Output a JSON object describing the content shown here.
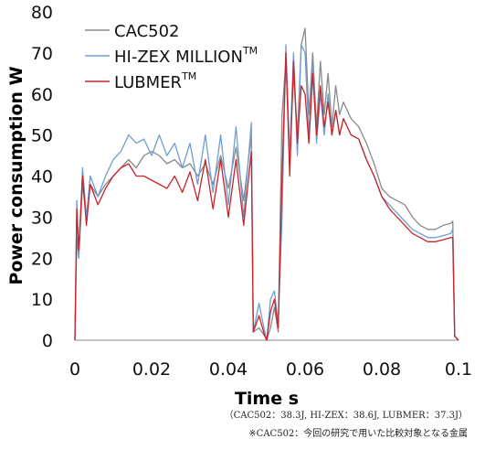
{
  "chart_data": {
    "type": "line",
    "xlabel": "Time s",
    "ylabel": "Power consumption W",
    "xlim": [
      0,
      0.1
    ],
    "ylim": [
      0,
      80
    ],
    "x_ticks": [
      "0",
      "0.02",
      "0.04",
      "0.06",
      "0.08",
      "0.1"
    ],
    "y_ticks": [
      "0",
      "10",
      "20",
      "30",
      "40",
      "50",
      "60",
      "70",
      "80"
    ],
    "grid": false,
    "legend_position": "top-left",
    "series": [
      {
        "name": "CAC502",
        "superscript": "",
        "color": "#8a8a8a",
        "points": [
          [
            0,
            0
          ],
          [
            0.0005,
            25
          ],
          [
            0.001,
            20
          ],
          [
            0.002,
            38
          ],
          [
            0.003,
            30
          ],
          [
            0.004,
            38
          ],
          [
            0.006,
            35
          ],
          [
            0.008,
            38
          ],
          [
            0.01,
            40
          ],
          [
            0.012,
            42
          ],
          [
            0.014,
            44
          ],
          [
            0.016,
            42
          ],
          [
            0.018,
            45
          ],
          [
            0.02,
            46
          ],
          [
            0.022,
            45
          ],
          [
            0.024,
            43
          ],
          [
            0.026,
            44
          ],
          [
            0.028,
            42
          ],
          [
            0.03,
            43
          ],
          [
            0.032,
            40
          ],
          [
            0.034,
            43
          ],
          [
            0.036,
            38
          ],
          [
            0.038,
            45
          ],
          [
            0.04,
            37
          ],
          [
            0.042,
            47
          ],
          [
            0.044,
            34
          ],
          [
            0.046,
            50
          ],
          [
            0.0465,
            2
          ],
          [
            0.048,
            3
          ],
          [
            0.0495,
            1
          ],
          [
            0.05,
            0
          ],
          [
            0.051,
            3
          ],
          [
            0.052,
            8
          ],
          [
            0.053,
            2
          ],
          [
            0.054,
            55
          ],
          [
            0.055,
            68
          ],
          [
            0.056,
            45
          ],
          [
            0.057,
            65
          ],
          [
            0.058,
            50
          ],
          [
            0.059,
            72
          ],
          [
            0.06,
            76
          ],
          [
            0.061,
            55
          ],
          [
            0.062,
            70
          ],
          [
            0.063,
            52
          ],
          [
            0.064,
            68
          ],
          [
            0.065,
            55
          ],
          [
            0.066,
            65
          ],
          [
            0.067,
            52
          ],
          [
            0.068,
            62
          ],
          [
            0.069,
            55
          ],
          [
            0.07,
            58
          ],
          [
            0.072,
            54
          ],
          [
            0.074,
            52
          ],
          [
            0.076,
            48
          ],
          [
            0.078,
            43
          ],
          [
            0.08,
            37
          ],
          [
            0.082,
            35
          ],
          [
            0.084,
            34
          ],
          [
            0.086,
            33
          ],
          [
            0.088,
            30
          ],
          [
            0.09,
            28
          ],
          [
            0.092,
            27
          ],
          [
            0.094,
            27
          ],
          [
            0.096,
            28
          ],
          [
            0.098,
            28.5
          ],
          [
            0.0985,
            29
          ],
          [
            0.099,
            1
          ],
          [
            0.1,
            0
          ]
        ]
      },
      {
        "name": "HI-ZEX MILLION",
        "superscript": "TM",
        "color": "#6e9ed0",
        "points": [
          [
            0,
            0
          ],
          [
            0.0005,
            34
          ],
          [
            0.001,
            20
          ],
          [
            0.002,
            42
          ],
          [
            0.003,
            30
          ],
          [
            0.004,
            40
          ],
          [
            0.006,
            35
          ],
          [
            0.008,
            40
          ],
          [
            0.01,
            44
          ],
          [
            0.012,
            46
          ],
          [
            0.014,
            50
          ],
          [
            0.016,
            48
          ],
          [
            0.018,
            49
          ],
          [
            0.02,
            45
          ],
          [
            0.022,
            50
          ],
          [
            0.024,
            45
          ],
          [
            0.026,
            48
          ],
          [
            0.028,
            42
          ],
          [
            0.03,
            48
          ],
          [
            0.032,
            38
          ],
          [
            0.034,
            50
          ],
          [
            0.036,
            36
          ],
          [
            0.038,
            50
          ],
          [
            0.04,
            33
          ],
          [
            0.042,
            52
          ],
          [
            0.044,
            30
          ],
          [
            0.046,
            53
          ],
          [
            0.0465,
            2
          ],
          [
            0.048,
            9
          ],
          [
            0.0495,
            2
          ],
          [
            0.05,
            0
          ],
          [
            0.051,
            10
          ],
          [
            0.052,
            12
          ],
          [
            0.053,
            4
          ],
          [
            0.054,
            30
          ],
          [
            0.055,
            72
          ],
          [
            0.056,
            45
          ],
          [
            0.057,
            70
          ],
          [
            0.058,
            45
          ],
          [
            0.059,
            72
          ],
          [
            0.06,
            70
          ],
          [
            0.061,
            50
          ],
          [
            0.062,
            68
          ],
          [
            0.063,
            48
          ],
          [
            0.064,
            60
          ],
          [
            0.065,
            50
          ],
          [
            0.066,
            60
          ],
          [
            0.067,
            50
          ],
          [
            0.068,
            56
          ],
          [
            0.069,
            50
          ],
          [
            0.07,
            54
          ],
          [
            0.072,
            50
          ],
          [
            0.074,
            49
          ],
          [
            0.076,
            44
          ],
          [
            0.078,
            40
          ],
          [
            0.08,
            35
          ],
          [
            0.082,
            33
          ],
          [
            0.084,
            31
          ],
          [
            0.086,
            29
          ],
          [
            0.088,
            27
          ],
          [
            0.09,
            26
          ],
          [
            0.092,
            25
          ],
          [
            0.094,
            25
          ],
          [
            0.096,
            25.5
          ],
          [
            0.098,
            26
          ],
          [
            0.0985,
            27
          ],
          [
            0.099,
            1
          ],
          [
            0.1,
            0
          ]
        ]
      },
      {
        "name": "LUBMER",
        "superscript": "TM",
        "color": "#c9242a",
        "points": [
          [
            0,
            0
          ],
          [
            0.0005,
            32
          ],
          [
            0.001,
            22
          ],
          [
            0.002,
            40
          ],
          [
            0.003,
            28
          ],
          [
            0.004,
            38
          ],
          [
            0.006,
            33
          ],
          [
            0.008,
            37
          ],
          [
            0.01,
            40
          ],
          [
            0.012,
            42
          ],
          [
            0.014,
            43
          ],
          [
            0.016,
            40
          ],
          [
            0.018,
            40
          ],
          [
            0.02,
            39
          ],
          [
            0.022,
            38
          ],
          [
            0.024,
            37
          ],
          [
            0.026,
            40
          ],
          [
            0.028,
            36
          ],
          [
            0.03,
            41
          ],
          [
            0.032,
            34
          ],
          [
            0.034,
            44
          ],
          [
            0.036,
            32
          ],
          [
            0.038,
            44
          ],
          [
            0.04,
            30
          ],
          [
            0.042,
            44
          ],
          [
            0.044,
            28
          ],
          [
            0.046,
            46
          ],
          [
            0.0465,
            2
          ],
          [
            0.048,
            6
          ],
          [
            0.0495,
            1
          ],
          [
            0.05,
            0
          ],
          [
            0.051,
            7
          ],
          [
            0.052,
            10
          ],
          [
            0.053,
            3
          ],
          [
            0.054,
            40
          ],
          [
            0.055,
            70
          ],
          [
            0.056,
            40
          ],
          [
            0.057,
            68
          ],
          [
            0.058,
            48
          ],
          [
            0.059,
            62
          ],
          [
            0.06,
            60
          ],
          [
            0.061,
            48
          ],
          [
            0.062,
            65
          ],
          [
            0.063,
            50
          ],
          [
            0.064,
            62
          ],
          [
            0.065,
            52
          ],
          [
            0.066,
            58
          ],
          [
            0.067,
            50
          ],
          [
            0.068,
            56
          ],
          [
            0.069,
            50
          ],
          [
            0.07,
            54
          ],
          [
            0.072,
            50
          ],
          [
            0.074,
            49
          ],
          [
            0.076,
            44
          ],
          [
            0.078,
            40
          ],
          [
            0.08,
            35
          ],
          [
            0.082,
            32
          ],
          [
            0.084,
            30
          ],
          [
            0.086,
            28
          ],
          [
            0.088,
            26
          ],
          [
            0.09,
            25
          ],
          [
            0.092,
            24
          ],
          [
            0.094,
            24
          ],
          [
            0.096,
            24.5
          ],
          [
            0.098,
            25
          ],
          [
            0.0985,
            25
          ],
          [
            0.099,
            1
          ],
          [
            0.1,
            0
          ]
        ]
      }
    ]
  },
  "footnotes": {
    "line1": "（CAC502：38.3J, HI-ZEX：38.6J, LUBMER：37.3J）",
    "line2": "※CAC502：今回の研究で用いた比較対象となる金属"
  }
}
